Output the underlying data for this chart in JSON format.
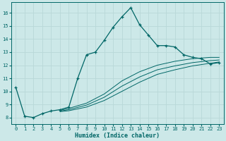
{
  "xlabel": "Humidex (Indice chaleur)",
  "bg_color": "#cce8e8",
  "grid_color": "#b8d8d8",
  "line_color": "#006666",
  "xlim": [
    -0.5,
    23.5
  ],
  "ylim": [
    7.5,
    16.8
  ],
  "xticks": [
    0,
    1,
    2,
    3,
    4,
    5,
    6,
    7,
    8,
    9,
    10,
    11,
    12,
    13,
    14,
    15,
    16,
    17,
    18,
    19,
    20,
    21,
    22,
    23
  ],
  "yticks": [
    8,
    9,
    10,
    11,
    12,
    13,
    14,
    15,
    16
  ],
  "main_x": [
    0,
    1,
    2,
    3,
    4,
    5,
    6,
    7,
    8,
    9,
    10,
    11,
    12,
    13,
    14,
    15,
    16,
    17,
    18,
    19,
    20,
    21,
    22,
    23
  ],
  "main_y": [
    10.3,
    8.1,
    8.0,
    8.3,
    8.5,
    8.6,
    8.8,
    11.0,
    12.8,
    13.0,
    13.9,
    14.9,
    15.7,
    16.4,
    15.1,
    14.3,
    13.5,
    13.5,
    13.4,
    12.8,
    12.6,
    12.5,
    12.1,
    12.2
  ],
  "line2_x": [
    5,
    6,
    8,
    10,
    12,
    14,
    16,
    18,
    20,
    22,
    23
  ],
  "line2_y": [
    8.55,
    8.7,
    9.1,
    9.8,
    10.8,
    11.5,
    12.0,
    12.3,
    12.5,
    12.6,
    12.6
  ],
  "line3_x": [
    5,
    6,
    8,
    10,
    12,
    14,
    16,
    18,
    20,
    22,
    23
  ],
  "line3_y": [
    8.5,
    8.6,
    8.95,
    9.55,
    10.4,
    11.1,
    11.65,
    11.95,
    12.2,
    12.35,
    12.4
  ],
  "line4_x": [
    5,
    6,
    8,
    10,
    12,
    14,
    16,
    18,
    20,
    22,
    23
  ],
  "line4_y": [
    8.45,
    8.52,
    8.8,
    9.3,
    10.0,
    10.7,
    11.3,
    11.65,
    11.95,
    12.15,
    12.25
  ]
}
